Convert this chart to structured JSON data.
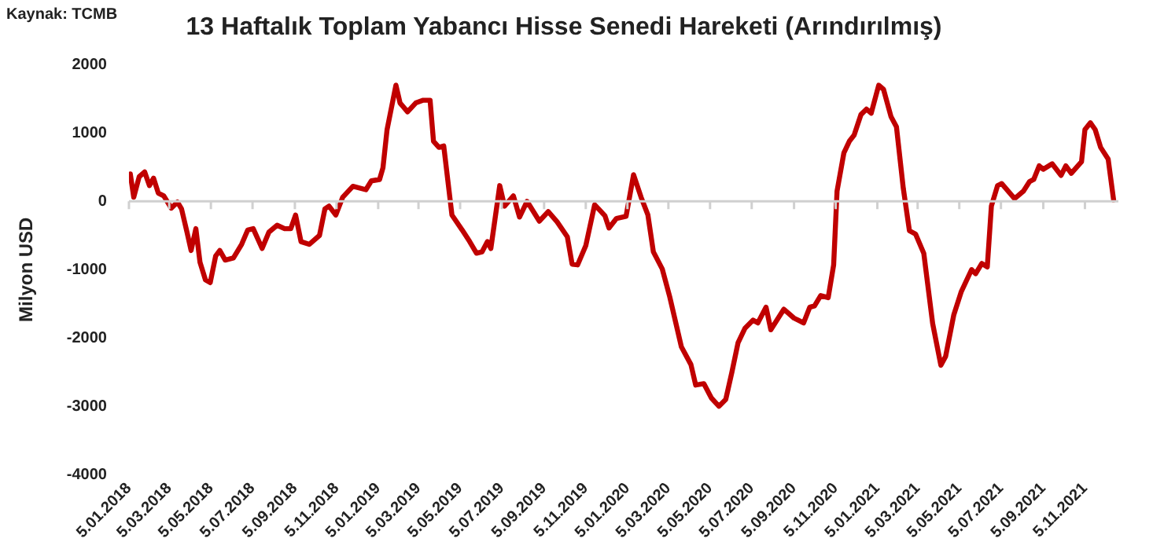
{
  "chart_data": {
    "type": "line",
    "title": "13 Haftalık Toplam Yabancı Hisse Senedi Hareketi (Arındırılmış)",
    "ylabel": "Milyon USD",
    "annotations": [
      "Kaynak: TCMB"
    ],
    "x": [
      "2018-01-07",
      "2018-01-12",
      "2018-01-20",
      "2018-01-28",
      "2018-02-04",
      "2018-02-10",
      "2018-02-17",
      "2018-02-25",
      "2018-03-08",
      "2018-03-17",
      "2018-03-23",
      "2018-03-31",
      "2018-04-06",
      "2018-04-13",
      "2018-04-19",
      "2018-04-27",
      "2018-05-04",
      "2018-05-12",
      "2018-05-18",
      "2018-05-26",
      "2018-06-07",
      "2018-06-19",
      "2018-06-28",
      "2018-07-06",
      "2018-07-19",
      "2018-07-29",
      "2018-08-10",
      "2018-08-21",
      "2018-08-30",
      "2018-09-06",
      "2018-09-14",
      "2018-09-26",
      "2018-10-11",
      "2018-10-19",
      "2018-10-25",
      "2018-11-04",
      "2018-11-14",
      "2018-11-29",
      "2018-12-18",
      "2018-12-26",
      "2019-01-07",
      "2019-01-12",
      "2019-01-18",
      "2019-01-31",
      "2019-02-06",
      "2019-02-17",
      "2019-03-01",
      "2019-03-12",
      "2019-03-22",
      "2019-03-27",
      "2019-04-04",
      "2019-04-11",
      "2019-04-23",
      "2019-05-08",
      "2019-05-19",
      "2019-05-29",
      "2019-06-06",
      "2019-06-14",
      "2019-06-19",
      "2019-07-02",
      "2019-07-09",
      "2019-07-22",
      "2019-07-31",
      "2019-08-11",
      "2019-08-29",
      "2019-09-11",
      "2019-09-24",
      "2019-10-09",
      "2019-10-16",
      "2019-10-24",
      "2019-11-05",
      "2019-11-18",
      "2019-12-03",
      "2019-12-09",
      "2019-12-20",
      "2020-01-03",
      "2020-01-14",
      "2020-01-25",
      "2020-02-04",
      "2020-02-12",
      "2020-02-25",
      "2020-03-07",
      "2020-03-24",
      "2020-04-07",
      "2020-04-14",
      "2020-04-26",
      "2020-05-07",
      "2020-05-18",
      "2020-05-28",
      "2020-06-06",
      "2020-06-15",
      "2020-06-25",
      "2020-07-07",
      "2020-07-14",
      "2020-07-26",
      "2020-08-02",
      "2020-08-21",
      "2020-09-05",
      "2020-09-19",
      "2020-09-28",
      "2020-10-05",
      "2020-10-14",
      "2020-10-25",
      "2020-11-02",
      "2020-11-07",
      "2020-11-17",
      "2020-11-25",
      "2020-12-02",
      "2020-12-12",
      "2020-12-20",
      "2020-12-27",
      "2021-01-07",
      "2021-01-14",
      "2021-01-25",
      "2021-02-02",
      "2021-02-12",
      "2021-02-21",
      "2021-03-02",
      "2021-03-14",
      "2021-03-27",
      "2021-04-08",
      "2021-04-15",
      "2021-04-27",
      "2021-05-08",
      "2021-05-23",
      "2021-05-29",
      "2021-06-07",
      "2021-06-15",
      "2021-06-21",
      "2021-06-30",
      "2021-07-06",
      "2021-07-25",
      "2021-08-07",
      "2021-08-16",
      "2021-08-22",
      "2021-08-30",
      "2021-09-05",
      "2021-09-18",
      "2021-10-01",
      "2021-10-08",
      "2021-10-16",
      "2021-10-31",
      "2021-11-05",
      "2021-11-13",
      "2021-11-20",
      "2021-11-28",
      "2021-12-09",
      "2021-12-17"
    ],
    "series": [
      {
        "color": "#c00000",
        "values": [
          400,
          60,
          360,
          430,
          230,
          340,
          120,
          80,
          -100,
          -10,
          -110,
          -450,
          -720,
          -400,
          -890,
          -1150,
          -1190,
          -800,
          -720,
          -860,
          -830,
          -630,
          -420,
          -400,
          -690,
          -450,
          -350,
          -400,
          -400,
          -200,
          -590,
          -630,
          -500,
          -110,
          -70,
          -200,
          60,
          220,
          170,
          300,
          320,
          490,
          1050,
          1700,
          1440,
          1310,
          1440,
          1480,
          1480,
          880,
          790,
          810,
          -200,
          -420,
          -590,
          -760,
          -740,
          -590,
          -690,
          230,
          -70,
          80,
          -230,
          0,
          -290,
          -150,
          -300,
          -520,
          -920,
          -930,
          -650,
          -50,
          -210,
          -390,
          -250,
          -220,
          390,
          60,
          -200,
          -740,
          -990,
          -1400,
          -2130,
          -2390,
          -2690,
          -2670,
          -2880,
          -3000,
          -2900,
          -2500,
          -2070,
          -1860,
          -1740,
          -1780,
          -1550,
          -1880,
          -1580,
          -1710,
          -1780,
          -1550,
          -1530,
          -1380,
          -1410,
          -930,
          150,
          710,
          880,
          970,
          1270,
          1350,
          1290,
          1700,
          1640,
          1240,
          1090,
          190,
          -430,
          -480,
          -760,
          -1790,
          -2400,
          -2270,
          -1660,
          -1320,
          -1000,
          -1060,
          -910,
          -960,
          -70,
          230,
          260,
          40,
          150,
          290,
          320,
          520,
          470,
          550,
          380,
          520,
          410,
          580,
          1050,
          1150,
          1050,
          790,
          620,
          20
        ]
      }
    ],
    "xlim": [
      "2018-01-05",
      "2021-12-24"
    ],
    "xticks": [
      {
        "value": "2018-01-05",
        "label": "5.01.2018"
      },
      {
        "value": "2018-03-05",
        "label": "5.03.2018"
      },
      {
        "value": "2018-05-05",
        "label": "5.05.2018"
      },
      {
        "value": "2018-07-05",
        "label": "5.07.2018"
      },
      {
        "value": "2018-09-05",
        "label": "5.09.2018"
      },
      {
        "value": "2018-11-05",
        "label": "5.11.2018"
      },
      {
        "value": "2019-01-05",
        "label": "5.01.2019"
      },
      {
        "value": "2019-03-05",
        "label": "5.03.2019"
      },
      {
        "value": "2019-05-05",
        "label": "5.05.2019"
      },
      {
        "value": "2019-07-05",
        "label": "5.07.2019"
      },
      {
        "value": "2019-09-05",
        "label": "5.09.2019"
      },
      {
        "value": "2019-11-05",
        "label": "5.11.2019"
      },
      {
        "value": "2020-01-05",
        "label": "5.01.2020"
      },
      {
        "value": "2020-03-05",
        "label": "5.03.2020"
      },
      {
        "value": "2020-05-05",
        "label": "5.05.2020"
      },
      {
        "value": "2020-07-05",
        "label": "5.07.2020"
      },
      {
        "value": "2020-09-05",
        "label": "5.09.2020"
      },
      {
        "value": "2020-11-05",
        "label": "5.11.2020"
      },
      {
        "value": "2021-01-05",
        "label": "5.01.2021"
      },
      {
        "value": "2021-03-05",
        "label": "5.03.2021"
      },
      {
        "value": "2021-05-05",
        "label": "5.05.2021"
      },
      {
        "value": "2021-07-05",
        "label": "5.07.2021"
      },
      {
        "value": "2021-09-05",
        "label": "5.09.2021"
      },
      {
        "value": "2021-11-05",
        "label": "5.11.2021"
      }
    ],
    "ylim": [
      -4000,
      2000
    ],
    "yticks": [
      -4000,
      -3000,
      -2000,
      -1000,
      0,
      1000,
      2000
    ],
    "ref_lines": [
      {
        "axis": "y",
        "value": 0,
        "color": "#d0d0d0"
      }
    ],
    "grid": false,
    "legend": false,
    "marker": "none",
    "line_style": "solid"
  }
}
